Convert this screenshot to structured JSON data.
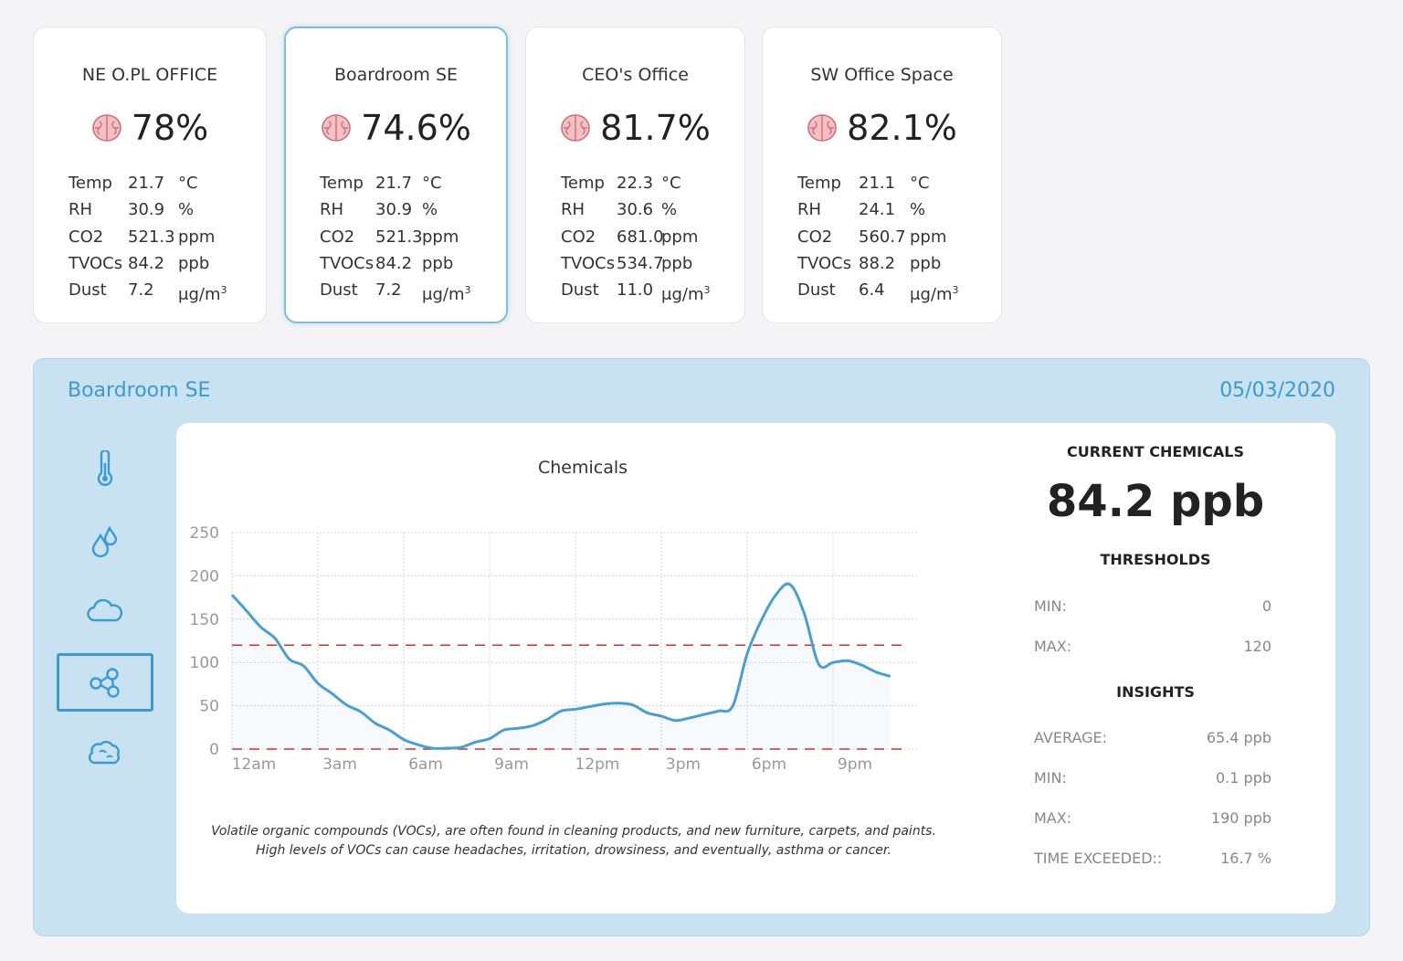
{
  "cards": [
    {
      "title": "NE O.PL OFFICE",
      "score": "78%",
      "metrics": [
        {
          "label": "Temp",
          "value": "21.7",
          "unit": "°C"
        },
        {
          "label": "RH",
          "value": "30.9",
          "unit": "%"
        },
        {
          "label": "CO2",
          "value": "521.3",
          "unit": "ppm"
        },
        {
          "label": "TVOCs",
          "value": "84.2",
          "unit": "ppb"
        },
        {
          "label": "Dust",
          "value": "7.2",
          "unit": "μg/m",
          "sup": "3"
        }
      ]
    },
    {
      "title": "Boardroom SE",
      "score": "74.6%",
      "metrics": [
        {
          "label": "Temp",
          "value": "21.7",
          "unit": "°C"
        },
        {
          "label": "RH",
          "value": "30.9",
          "unit": "%"
        },
        {
          "label": "CO2",
          "value": "521.3",
          "unit": "ppm"
        },
        {
          "label": "TVOCs",
          "value": "84.2",
          "unit": "ppb"
        },
        {
          "label": "Dust",
          "value": "7.2",
          "unit": "μg/m",
          "sup": "3"
        }
      ]
    },
    {
      "title": "CEO's Office",
      "score": "81.7%",
      "metrics": [
        {
          "label": "Temp",
          "value": "22.3",
          "unit": "°C"
        },
        {
          "label": "RH",
          "value": "30.6",
          "unit": "%"
        },
        {
          "label": "CO2",
          "value": "681.0",
          "unit": "ppm"
        },
        {
          "label": "TVOCs",
          "value": "534.7",
          "unit": "ppb"
        },
        {
          "label": "Dust",
          "value": "11.0",
          "unit": "μg/m",
          "sup": "3"
        }
      ]
    },
    {
      "title": "SW Office Space",
      "score": "82.1%",
      "metrics": [
        {
          "label": "Temp",
          "value": "21.1",
          "unit": "°C"
        },
        {
          "label": "RH",
          "value": "24.1",
          "unit": "%"
        },
        {
          "label": "CO2",
          "value": "560.7",
          "unit": "ppm"
        },
        {
          "label": "TVOCs",
          "value": "88.2",
          "unit": "ppb"
        },
        {
          "label": "Dust",
          "value": "6.4",
          "unit": "μg/m",
          "sup": "3"
        }
      ]
    }
  ],
  "selected_card": 1,
  "panel": {
    "room": "Boardroom SE",
    "date": "05/03/2020",
    "sidebar_icons": [
      "thermometer-icon",
      "droplets-icon",
      "cloud-icon",
      "molecule-icon",
      "dust-cloud-icon"
    ],
    "active_icon": 3,
    "note": "Volatile organic compounds (VOCs), are often found in cleaning products, and new furniture, carpets, and paints. High levels of VOCs can cause headaches, irritation, drowsiness, and eventually, asthma or cancer.",
    "current": {
      "heading": "CURRENT CHEMICALS",
      "value": "84.2 ppb",
      "thresholds_heading": "THRESHOLDS",
      "thresholds": [
        {
          "label": "MIN:",
          "value": "0"
        },
        {
          "label": "MAX:",
          "value": "120"
        }
      ],
      "insights_heading": "INSIGHTS",
      "insights": [
        {
          "label": "AVERAGE:",
          "value": "65.4 ppb"
        },
        {
          "label": "MIN:",
          "value": "0.1 ppb"
        },
        {
          "label": "MAX:",
          "value": "190 ppb"
        },
        {
          "label": "TIME EXCEEDED::",
          "value": "16.7 %"
        }
      ]
    }
  },
  "colors": {
    "accent": "#3b9ad2",
    "line": "#4a9fd0",
    "threshold": "#d32f2f",
    "panel_bg": "#c8e2f1"
  },
  "chart_data": {
    "type": "line",
    "title": "Chemicals",
    "x": [
      0,
      0.5,
      1,
      1.5,
      2,
      2.5,
      3,
      3.5,
      4,
      4.5,
      5,
      5.5,
      6,
      6.5,
      7,
      7.5,
      8,
      8.5,
      9,
      9.5,
      10,
      10.5,
      11,
      11.5,
      12,
      12.5,
      13,
      13.5,
      14,
      14.5,
      15,
      15.5,
      16,
      16.5,
      17,
      17.5,
      18,
      18.5,
      19,
      19.5,
      20,
      20.5,
      21,
      21.5,
      22,
      22.5,
      23
    ],
    "series": [
      {
        "values": [
          178,
          160,
          141,
          128,
          104,
          96,
          76,
          64,
          51,
          43,
          30,
          22,
          11,
          5,
          1,
          1,
          2,
          8,
          12,
          22,
          24,
          27,
          34,
          44,
          46,
          49,
          52,
          53,
          51,
          42,
          38,
          33,
          36,
          40,
          44,
          50,
          110,
          149,
          178,
          190,
          156,
          98,
          100,
          102,
          97,
          89,
          84
        ]
      }
    ],
    "thresholds": {
      "min": 0,
      "max": 120
    },
    "xticks": [
      "12am",
      "3am",
      "6am",
      "9am",
      "12pm",
      "3pm",
      "6pm",
      "9pm"
    ],
    "yticks": [
      0,
      50,
      100,
      150,
      200,
      250
    ],
    "ylim": [
      0,
      250
    ],
    "xlim": [
      0,
      24
    ],
    "grid": true
  }
}
